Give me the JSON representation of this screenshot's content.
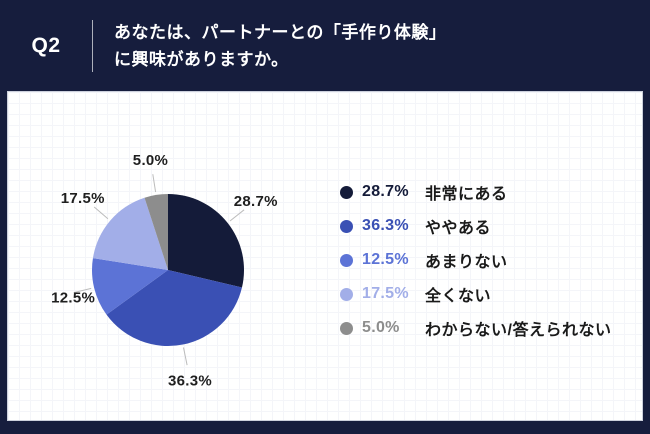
{
  "header": {
    "question_no": "Q2",
    "question_line1": "あなたは、パートナーとの「手作り体験」",
    "question_line2": "に興味がありますか。"
  },
  "chart_data": {
    "type": "pie",
    "title": "",
    "categories": [
      "非常にある",
      "ややある",
      "あまりない",
      "全くない",
      "わからない/答えられない"
    ],
    "values": [
      28.7,
      36.3,
      12.5,
      17.5,
      5.0
    ],
    "value_labels": [
      "28.7%",
      "36.3%",
      "12.5%",
      "17.5%",
      "5.0%"
    ],
    "colors": [
      "#141b39",
      "#3a50b4",
      "#5c73d6",
      "#a2aee8",
      "#8d8d8d"
    ],
    "start_angle_deg": 0,
    "direction": "clockwise",
    "legend_position": "right",
    "grid": false
  },
  "style_colors": {
    "frame_navy": "#161d3d",
    "panel_white": "#ffffff",
    "leader_line": "#bcbcbc",
    "pie_label_text": "#1f1f1f",
    "legend_label_text": "#1a1a1a"
  }
}
